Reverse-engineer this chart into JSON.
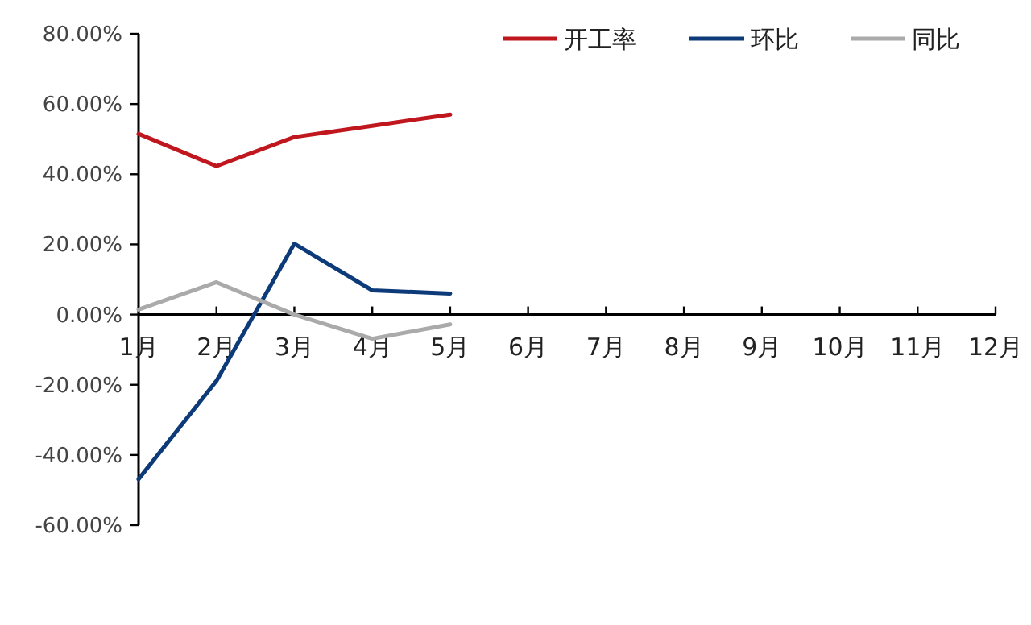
{
  "chart_data": {
    "type": "line",
    "categories": [
      "1月",
      "2月",
      "3月",
      "4月",
      "5月",
      "6月",
      "7月",
      "8月",
      "9月",
      "10月",
      "11月",
      "12月"
    ],
    "series": [
      {
        "name": "开工率",
        "color": "#c0161e",
        "values": [
          51.5,
          42.3,
          50.6,
          53.8,
          57.0,
          null,
          null,
          null,
          null,
          null,
          null,
          null
        ]
      },
      {
        "name": "环比",
        "color": "#0d3a78",
        "values": [
          -46.9,
          -18.9,
          20.2,
          6.9,
          6.0,
          null,
          null,
          null,
          null,
          null,
          null,
          null
        ]
      },
      {
        "name": "同比",
        "color": "#aaaaaa",
        "values": [
          1.4,
          9.2,
          0,
          -6.9,
          -2.8,
          null,
          null,
          null,
          null,
          null,
          null,
          null
        ]
      }
    ],
    "ylim": [
      -60,
      80
    ],
    "yticks": [
      {
        "value": -60,
        "label": "-60.00%"
      },
      {
        "value": -40,
        "label": "-40.00%"
      },
      {
        "value": -20,
        "label": "-20.00%"
      },
      {
        "value": 0,
        "label": "0.00%"
      },
      {
        "value": 20,
        "label": "20.00%"
      },
      {
        "value": 40,
        "label": "40.00%"
      },
      {
        "value": 60,
        "label": "60.00%"
      },
      {
        "value": 80,
        "label": "80.00%"
      }
    ],
    "legend": "top right"
  }
}
